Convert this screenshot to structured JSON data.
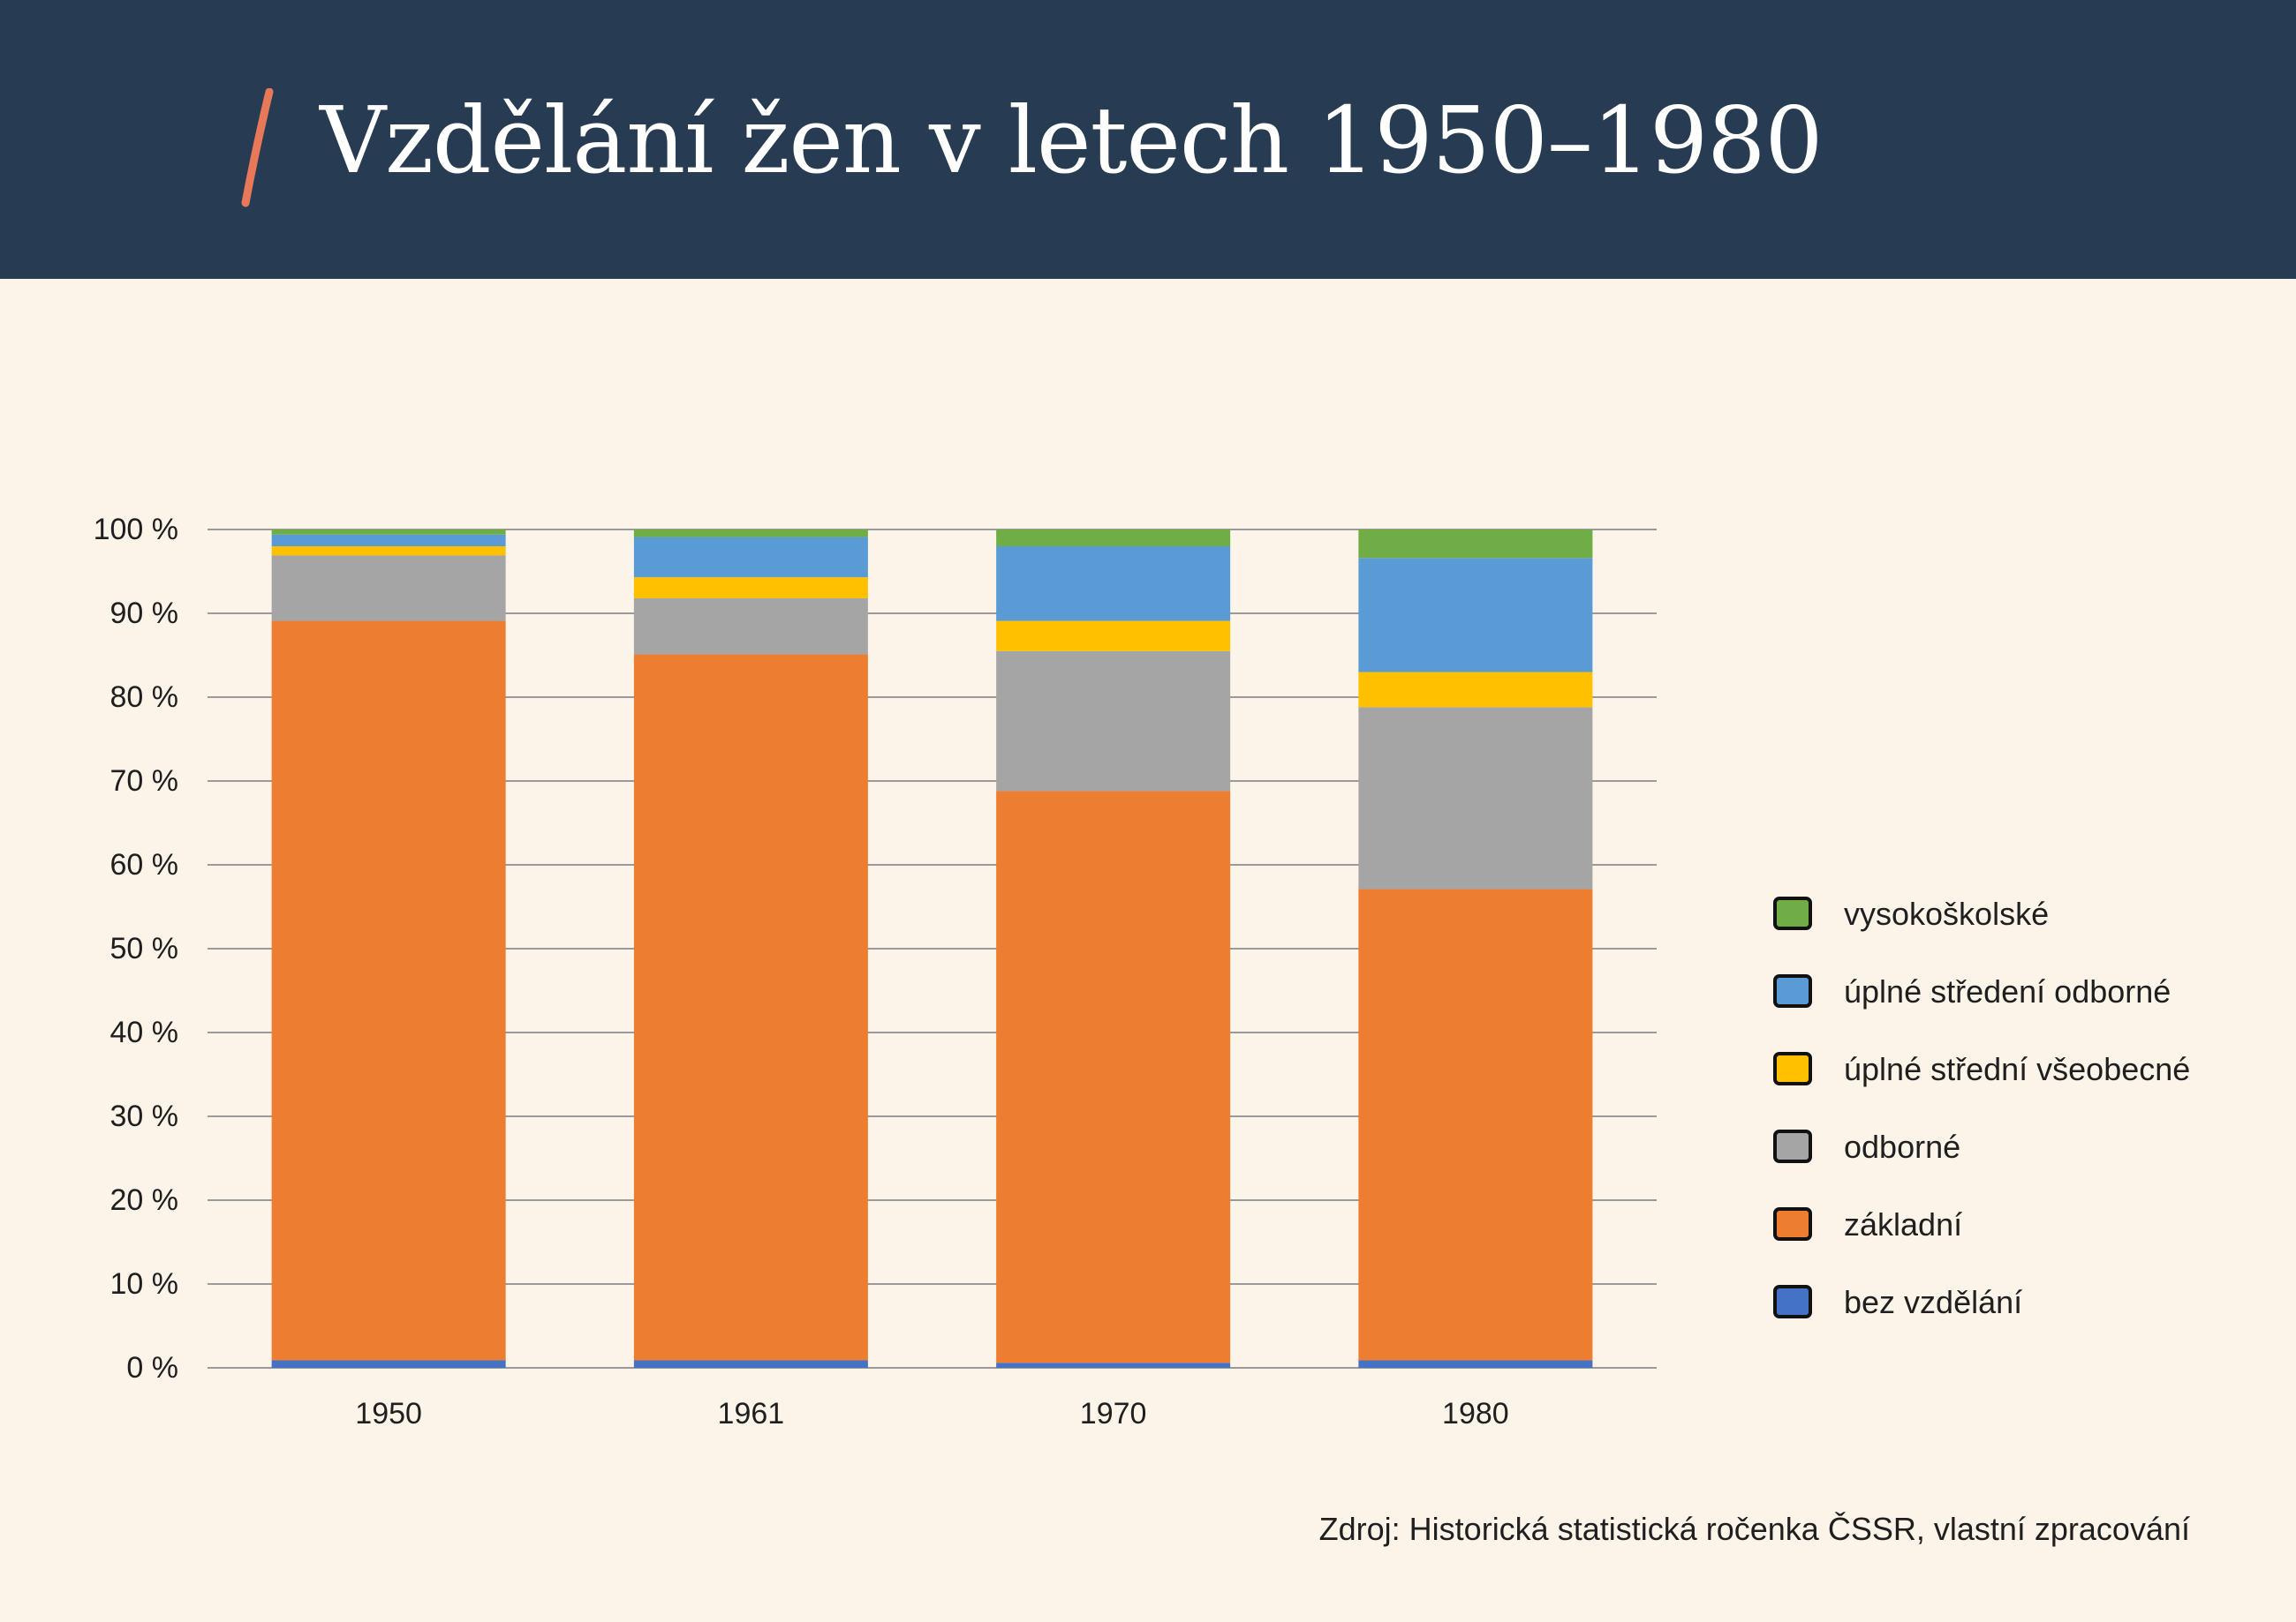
{
  "header": {
    "title": "Vzdělání žen v letech 1950–1980",
    "accent_color": "#e7785a",
    "background": "#273c52"
  },
  "chart_data": {
    "type": "bar",
    "stacked": true,
    "categories": [
      "1950",
      "1961",
      "1970",
      "1980"
    ],
    "y_ticks": [
      "0 %",
      "10 %",
      "20 %",
      "30 %",
      "40 %",
      "50 %",
      "60 %",
      "70 %",
      "80 %",
      "90 %",
      "100 %"
    ],
    "ylim": [
      0,
      100
    ],
    "grid": true,
    "legend_position": "right",
    "series": [
      {
        "name": "bez vzdělání",
        "color": "#4472c4",
        "values": [
          0.9,
          0.9,
          0.6,
          0.9
        ]
      },
      {
        "name": "základní",
        "color": "#ed7d31",
        "values": [
          88.2,
          84.2,
          68.2,
          56.2
        ]
      },
      {
        "name": "odborné",
        "color": "#a5a5a5",
        "values": [
          7.8,
          6.7,
          16.7,
          21.7
        ]
      },
      {
        "name": "úplné střední všeobecné",
        "color": "#ffc000",
        "values": [
          1.1,
          2.5,
          3.6,
          4.2
        ]
      },
      {
        "name": "úplné středení odborné",
        "color": "#5b9bd5",
        "values": [
          1.4,
          4.8,
          8.9,
          13.6
        ]
      },
      {
        "name": "vysokoškolské",
        "color": "#70ad47",
        "values": [
          0.6,
          0.9,
          2.0,
          3.4
        ]
      }
    ]
  },
  "legend_order": [
    5,
    4,
    3,
    2,
    1,
    0
  ],
  "footer": {
    "source": "Zdroj: Historická statistická ročenka ČSSR, vlastní zpracování"
  }
}
